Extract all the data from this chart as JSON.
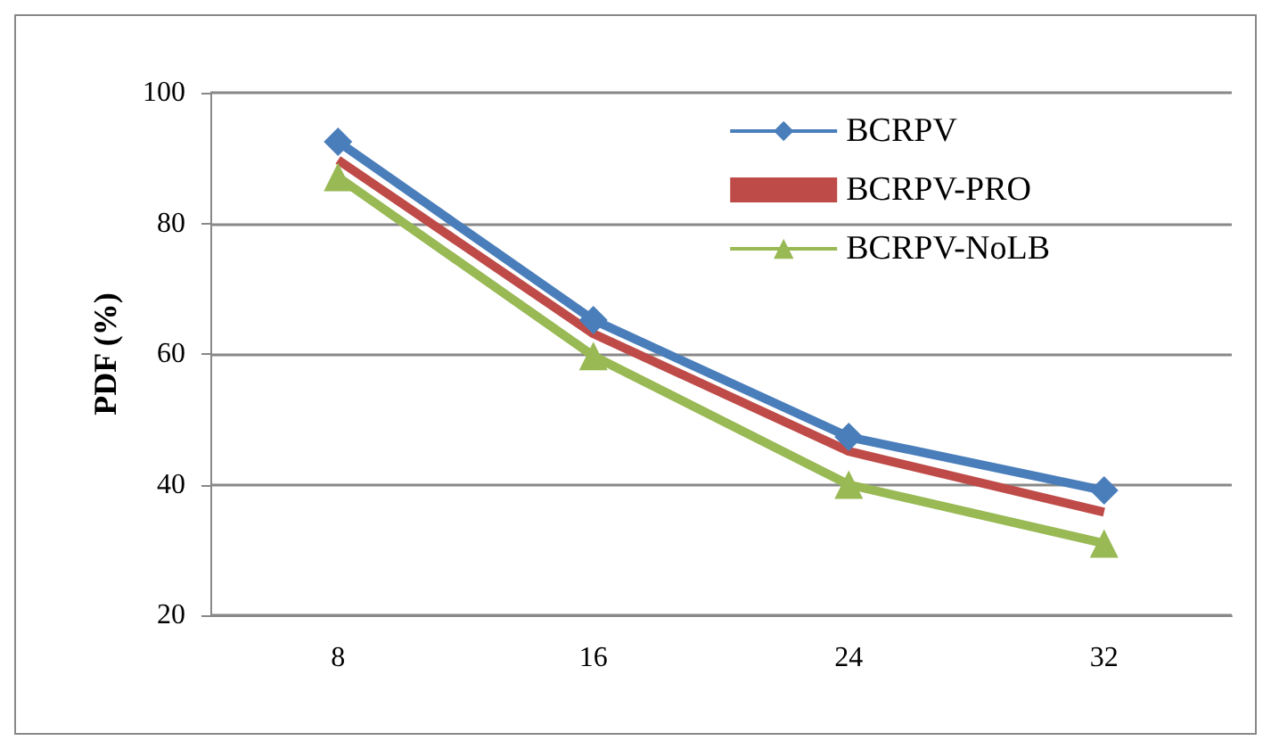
{
  "chart_data": {
    "type": "line",
    "ylabel": "PDF (%)",
    "categories": [
      "8",
      "16",
      "24",
      "32"
    ],
    "ylim": [
      20,
      100
    ],
    "yticks": [
      20,
      40,
      60,
      80,
      100
    ],
    "grid": "y",
    "legend": "top right",
    "series": [
      {
        "name": "BCRPV",
        "color": "#4a7ebb",
        "marker": "diamond",
        "values": [
          92.5,
          65.2,
          47.3,
          39.1
        ]
      },
      {
        "name": "BCRPV-PRO",
        "color": "#be4b48",
        "marker": "none",
        "values": [
          89.7,
          63.1,
          45.1,
          35.8
        ]
      },
      {
        "name": "BCRPV-NoLB",
        "color": "#98b954",
        "marker": "triangle",
        "values": [
          87.1,
          59.7,
          40,
          31
        ]
      }
    ]
  }
}
